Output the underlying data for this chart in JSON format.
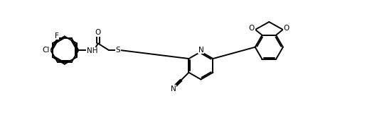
{
  "bg_color": "#ffffff",
  "line_color": "#000000",
  "line_width": 1.4,
  "figsize": [
    5.3,
    1.77
  ],
  "dpi": 100,
  "font_size": 7.5,
  "xlim": [
    0,
    100
  ],
  "ylim": [
    -5,
    35
  ]
}
